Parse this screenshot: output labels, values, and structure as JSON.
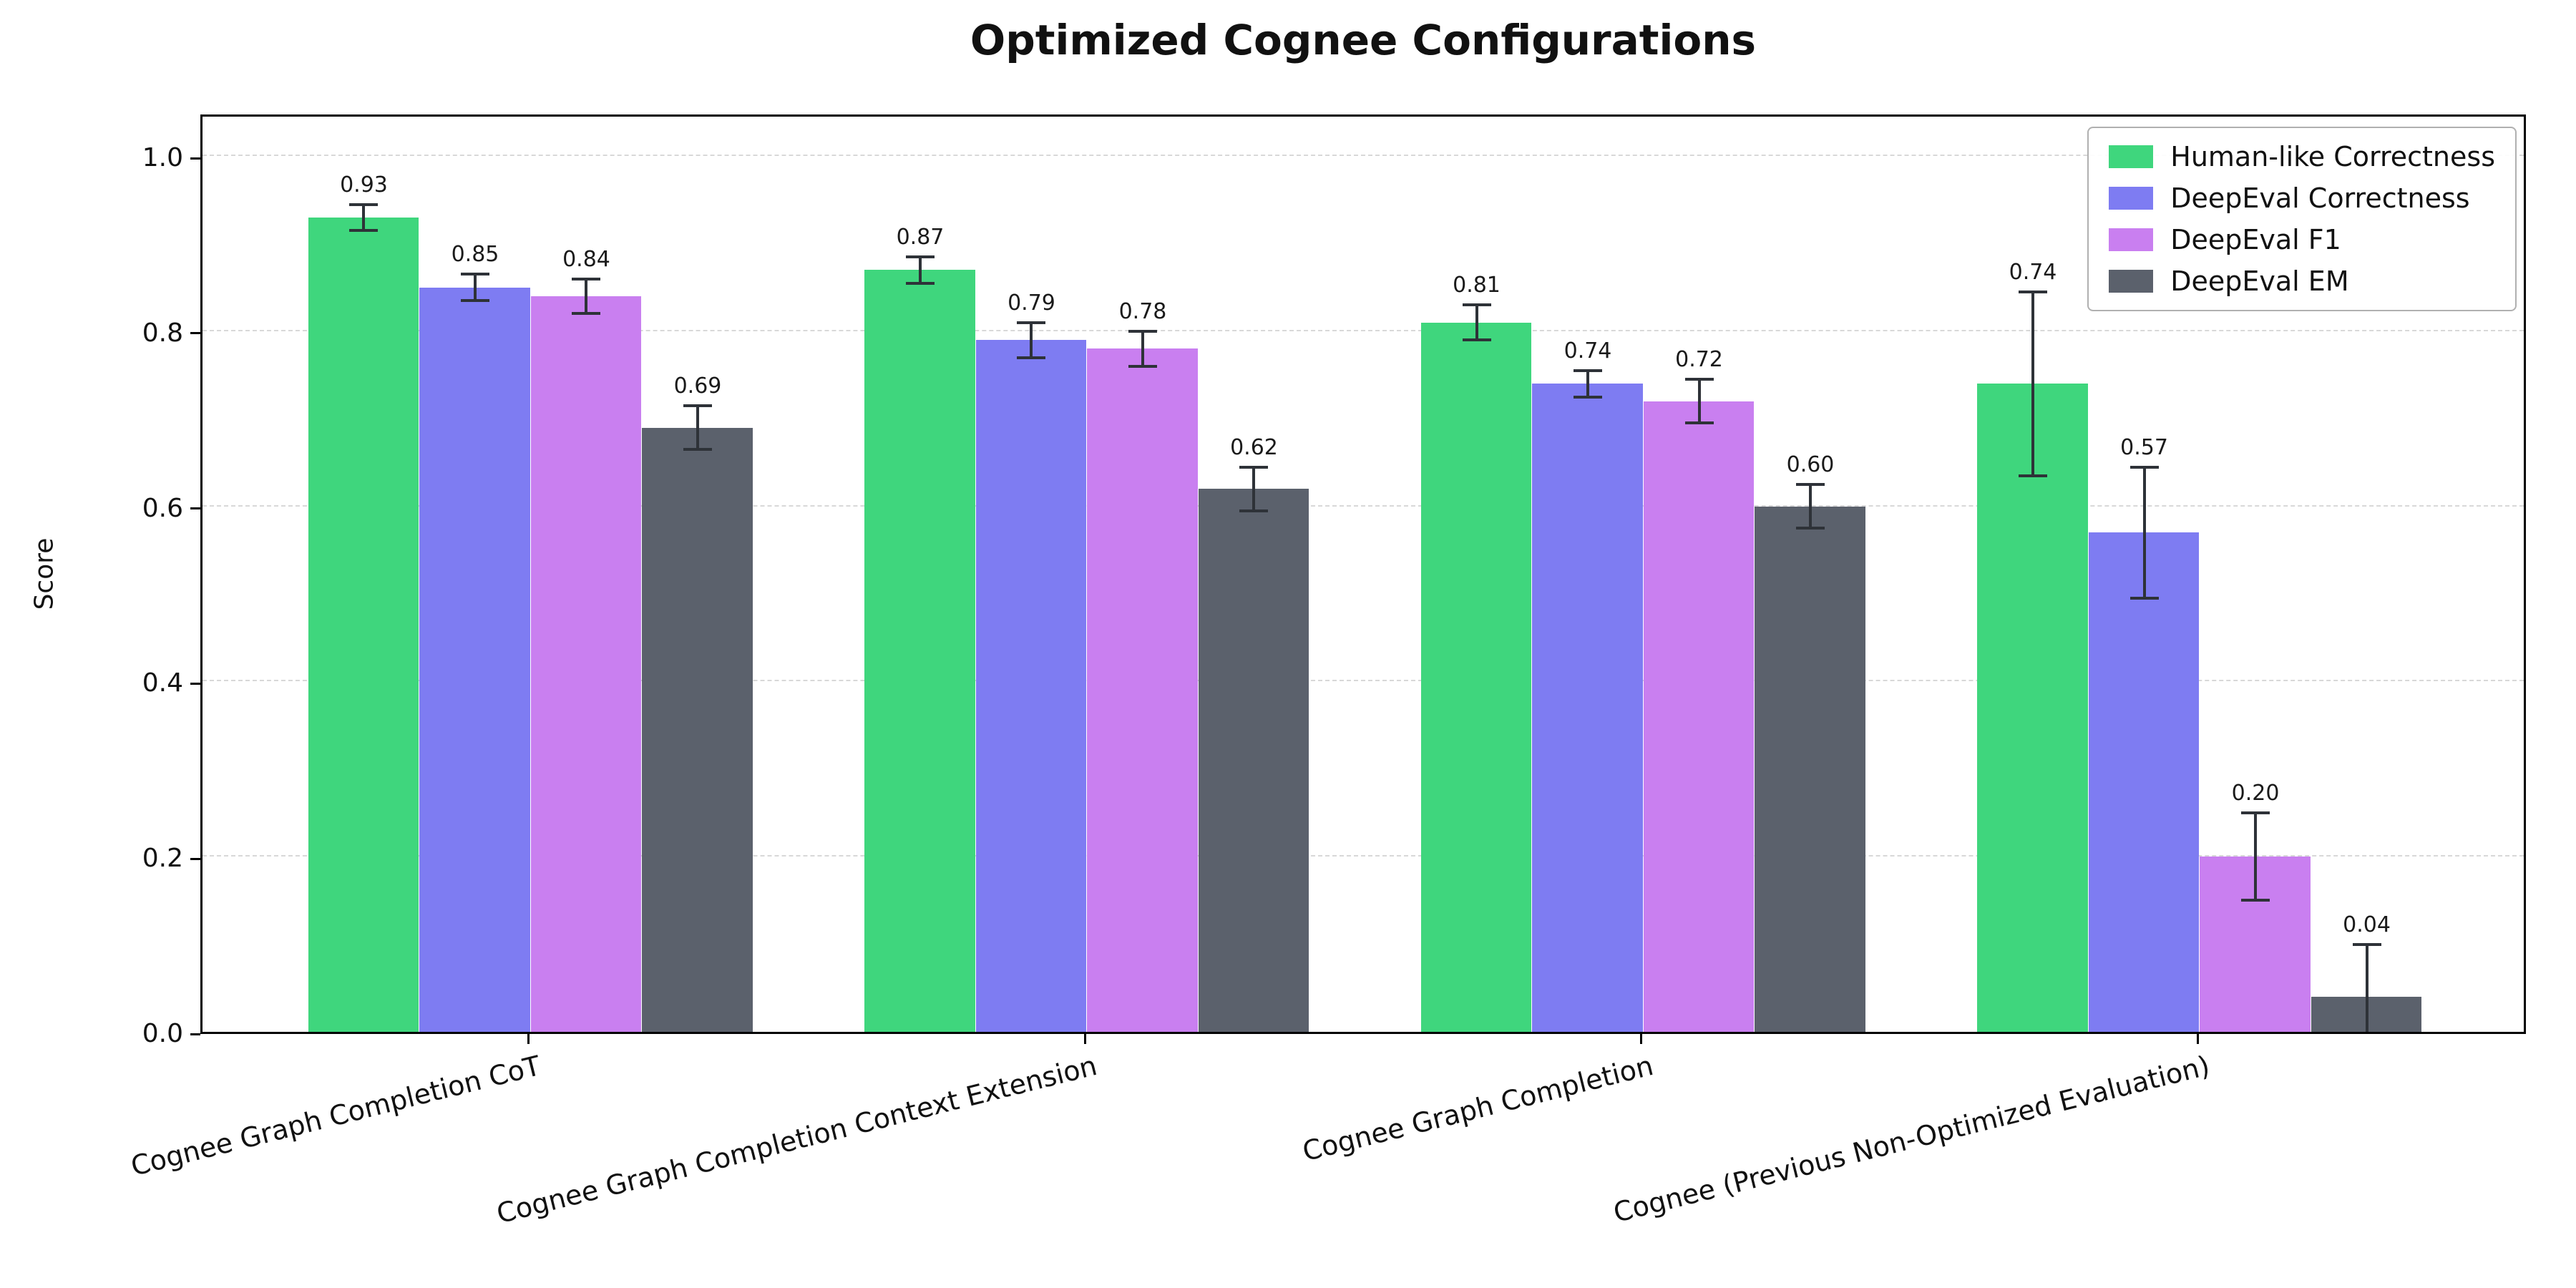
{
  "chart_data": {
    "type": "bar",
    "title": "Optimized Cognee Configurations",
    "xlabel": "",
    "ylabel": "Score",
    "ylim": [
      0,
      1.05
    ],
    "yticks": [
      0.0,
      0.2,
      0.4,
      0.6,
      0.8,
      1.0
    ],
    "grid": "horizontal-dashed",
    "legend_position": "upper right",
    "categories": [
      "Cognee Graph Completion CoT",
      "Cognee Graph Completion Context Extension",
      "Cognee Graph Completion",
      "Cognee (Previous Non-Optimized Evaluation)"
    ],
    "series": [
      {
        "name": "Human-like Correctness",
        "color": "#3fd67d",
        "values": [
          0.93,
          0.87,
          0.81,
          0.74
        ],
        "errors": [
          0.015,
          0.015,
          0.02,
          0.105
        ]
      },
      {
        "name": "DeepEval Correctness",
        "color": "#7e7cf2",
        "values": [
          0.85,
          0.79,
          0.74,
          0.57
        ],
        "errors": [
          0.015,
          0.02,
          0.015,
          0.075
        ]
      },
      {
        "name": "DeepEval F1",
        "color": "#c97ff0",
        "values": [
          0.84,
          0.78,
          0.72,
          0.2
        ],
        "errors": [
          0.02,
          0.02,
          0.025,
          0.05
        ]
      },
      {
        "name": "DeepEval EM",
        "color": "#5b616c",
        "values": [
          0.69,
          0.62,
          0.6,
          0.04
        ],
        "errors": [
          0.025,
          0.025,
          0.025,
          0.06
        ]
      }
    ],
    "bar_value_labels": [
      "0.93",
      "0.85",
      "0.84",
      "0.69",
      "0.87",
      "0.79",
      "0.78",
      "0.62",
      "0.81",
      "0.74",
      "0.72",
      "0.60",
      "0.74",
      "0.57",
      "0.20",
      "0.04"
    ]
  }
}
